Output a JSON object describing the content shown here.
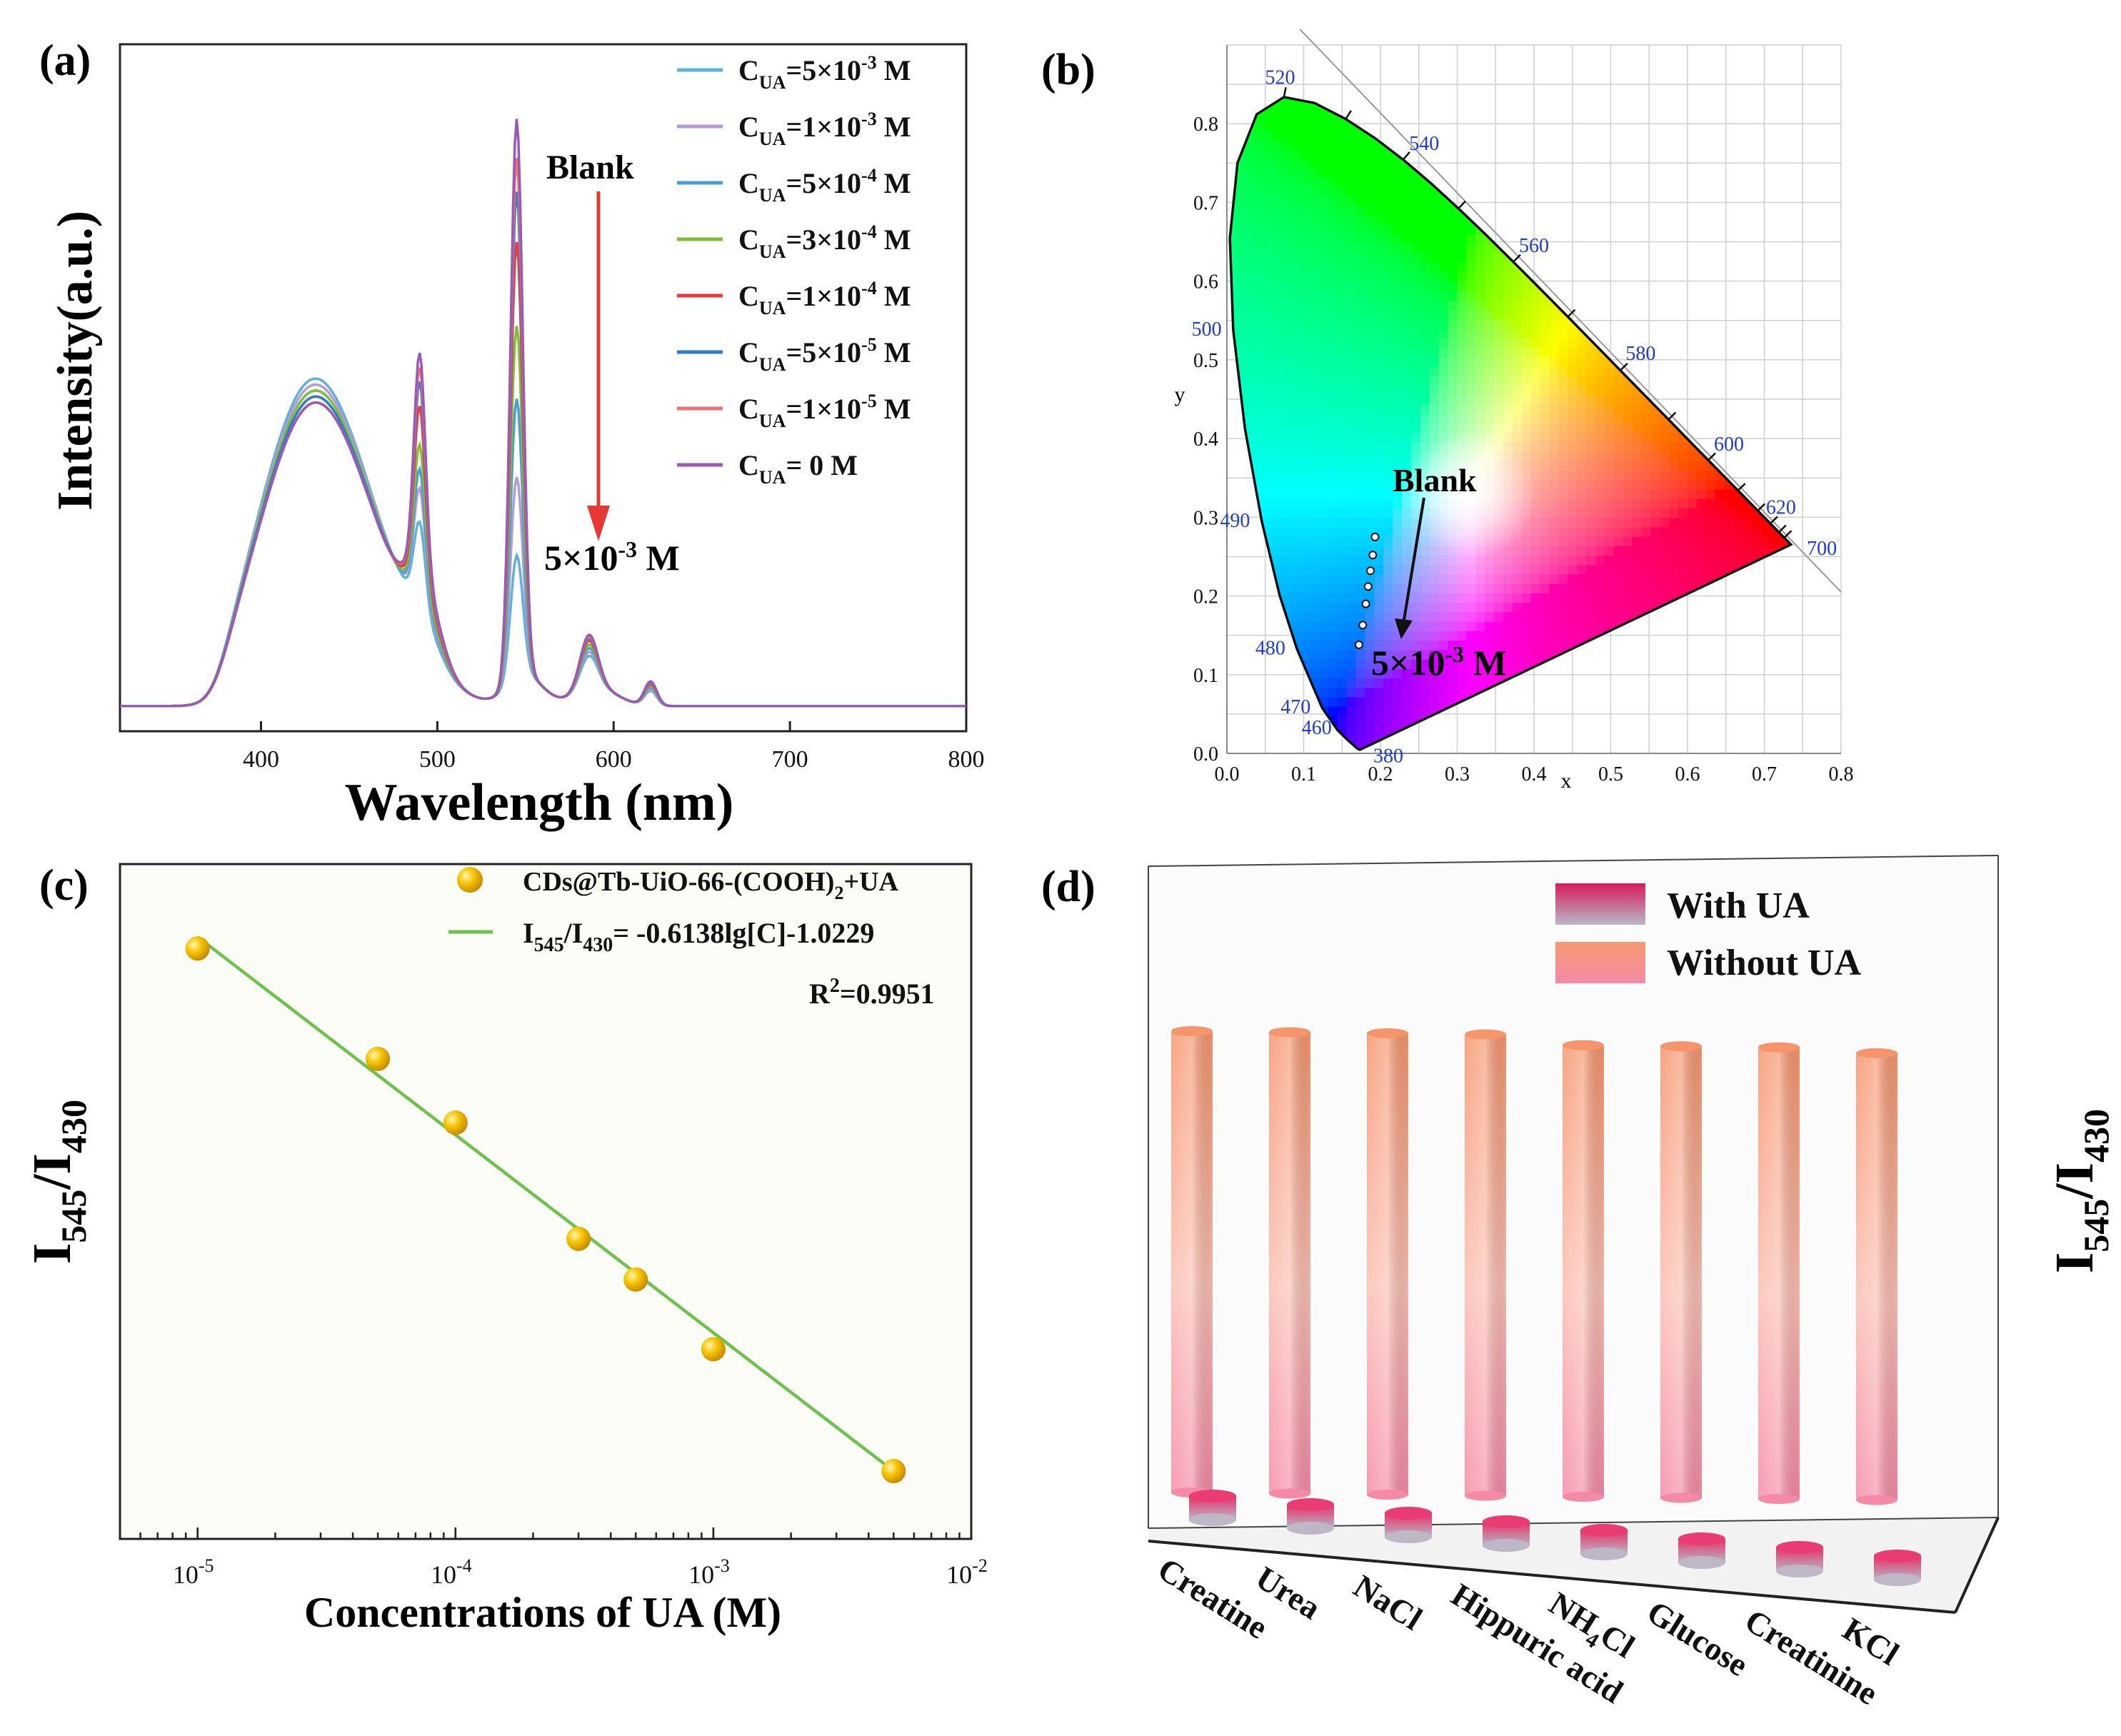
{
  "panels": {
    "a": {
      "label": "(a)",
      "chart_data": {
        "type": "line",
        "xlabel": "Wavelength (nm)",
        "ylabel": "Intensity(a.u.)",
        "xlim": [
          320,
          800
        ],
        "ylim": [
          0,
          1.0
        ],
        "xticks": [
          "400",
          "500",
          "600",
          "700",
          "800"
        ],
        "xtick_values": [
          400,
          500,
          600,
          700,
          800
        ],
        "annotation_top": "Blank",
        "annotation_bottom_base": "5×10",
        "annotation_bottom_exp": "-3",
        "annotation_bottom_unit": " M",
        "series": [
          {
            "name": "CUA=5×10-3 M",
            "sub": "UA",
            "mant": "5×10",
            "exp": "-3",
            "unit": " M",
            "color": "#5fb0dc",
            "peak545": 0.22,
            "peak490": 0.22,
            "peak430": 0.52
          },
          {
            "name": "CUA=1×10-3 M",
            "sub": "UA",
            "mant": "1×10",
            "exp": "-3",
            "unit": " M",
            "color": "#b59ad8",
            "peak545": 0.36,
            "peak490": 0.29,
            "peak430": 0.51
          },
          {
            "name": "CUA=5×10-4 M",
            "sub": "UA",
            "mant": "5×10",
            "exp": "-4",
            "unit": " M",
            "color": "#4a9ed8",
            "peak545": 0.5,
            "peak490": 0.33,
            "peak430": 0.5
          },
          {
            "name": "CUA=3×10-4 M",
            "sub": "UA",
            "mant": "3×10",
            "exp": "-4",
            "unit": " M",
            "color": "#7cc03a",
            "peak545": 0.63,
            "peak490": 0.38,
            "peak430": 0.5
          },
          {
            "name": "CUA=1×10-4 M",
            "sub": "UA",
            "mant": "1×10",
            "exp": "-4",
            "unit": " M",
            "color": "#ee3b3b",
            "peak545": 0.78,
            "peak490": 0.46,
            "peak430": 0.49
          },
          {
            "name": "CUA=5×10-5 M",
            "sub": "UA",
            "mant": "5×10",
            "exp": "-5",
            "unit": " M",
            "color": "#2f7fc8",
            "peak545": 0.87,
            "peak490": 0.51,
            "peak430": 0.49
          },
          {
            "name": "CUA=1×10-5 M",
            "sub": "UA",
            "mant": "1×10",
            "exp": "-5",
            "unit": " M",
            "color": "#f07070",
            "peak545": 0.93,
            "peak490": 0.54,
            "peak430": 0.48
          },
          {
            "name": "CUA= 0 M",
            "sub": "UA",
            "mant": "= 0",
            "exp": "",
            "unit": " M",
            "color": "#9b59b6",
            "peak545": 1.0,
            "peak490": 0.57,
            "peak430": 0.48
          }
        ]
      }
    },
    "b": {
      "label": "(b)",
      "chart_data": {
        "type": "scatter",
        "xlabel": "x",
        "ylabel": "y",
        "xlim": [
          0,
          0.8
        ],
        "ylim": [
          0,
          0.9
        ],
        "xticks": [
          "0.0",
          "0.1",
          "0.2",
          "0.3",
          "0.4",
          "0.5",
          "0.6",
          "0.7",
          "0.8"
        ],
        "xtick_values": [
          0,
          0.1,
          0.2,
          0.3,
          0.4,
          0.5,
          0.6,
          0.7,
          0.8
        ],
        "yticks": [
          "0.0",
          "0.1",
          "0.2",
          "0.3",
          "0.4",
          "0.5",
          "0.6",
          "0.7",
          "0.8"
        ],
        "ytick_values": [
          0,
          0.1,
          0.2,
          0.3,
          0.4,
          0.5,
          0.6,
          0.7,
          0.8
        ],
        "wavelength_labels": [
          {
            "text": "520",
            "x": 0.074,
            "y": 0.834
          },
          {
            "text": "540",
            "x": 0.23,
            "y": 0.754
          },
          {
            "text": "560",
            "x": 0.373,
            "y": 0.624
          },
          {
            "text": "580",
            "x": 0.512,
            "y": 0.487
          },
          {
            "text": "600",
            "x": 0.627,
            "y": 0.372
          },
          {
            "text": "620",
            "x": 0.691,
            "y": 0.308
          },
          {
            "text": "700",
            "x": 0.735,
            "y": 0.265
          },
          {
            "text": "500",
            "x": 0.008,
            "y": 0.538
          },
          {
            "text": "490",
            "x": 0.045,
            "y": 0.295
          },
          {
            "text": "480",
            "x": 0.091,
            "y": 0.133
          },
          {
            "text": "470",
            "x": 0.124,
            "y": 0.058
          },
          {
            "text": "460",
            "x": 0.144,
            "y": 0.03
          },
          {
            "text": "380",
            "x": 0.174,
            "y": 0.005
          }
        ],
        "points": [
          {
            "x": 0.193,
            "y": 0.275
          },
          {
            "x": 0.19,
            "y": 0.252
          },
          {
            "x": 0.187,
            "y": 0.232
          },
          {
            "x": 0.184,
            "y": 0.212
          },
          {
            "x": 0.181,
            "y": 0.19
          },
          {
            "x": 0.177,
            "y": 0.163
          },
          {
            "x": 0.172,
            "y": 0.138
          }
        ],
        "annotation_top": "Blank",
        "annotation_bottom_base": "5×10",
        "annotation_bottom_exp": "-3",
        "annotation_bottom_unit": " M"
      }
    },
    "c": {
      "label": "(c)",
      "chart_data": {
        "type": "scatter",
        "xlabel": "Concentrations of UA (M)",
        "ylabel_main": "I",
        "ylabel_sub1": "545",
        "ylabel_sep": "/I",
        "ylabel_sub2": "430",
        "xscale": "log",
        "xlim": [
          5e-06,
          0.01
        ],
        "ylim": [
          0.0,
          1.0
        ],
        "xticks": [
          {
            "base": "10",
            "exp": "-5",
            "value": 1e-05
          },
          {
            "base": "10",
            "exp": "-4",
            "value": 0.0001
          },
          {
            "base": "10",
            "exp": "-3",
            "value": 0.001
          },
          {
            "base": "10",
            "exp": "-2",
            "value": 0.01
          }
        ],
        "points": [
          {
            "x": 1e-05,
            "y": 0.86
          },
          {
            "x": 5e-05,
            "y": 0.67
          },
          {
            "x": 0.0001,
            "y": 0.56
          },
          {
            "x": 0.0003,
            "y": 0.36
          },
          {
            "x": 0.0005,
            "y": 0.29
          },
          {
            "x": 0.001,
            "y": 0.17
          },
          {
            "x": 0.005,
            "y": -0.04
          }
        ],
        "fit": {
          "x1": 1e-05,
          "y1": 0.88,
          "x2": 0.005,
          "y2": -0.04
        },
        "legend_points": "CDs@Tb-UiO-66-(COOH)",
        "legend_points_sub": "2",
        "legend_points_tail": "+UA",
        "legend_fit_main": "I",
        "legend_fit_sub1": "545",
        "legend_fit_sep": "/I",
        "legend_fit_sub2": "430",
        "legend_fit_tail": "= -0.6138lg[C]-1.0229",
        "r2_prefix": "R",
        "r2_exp": "2",
        "r2_tail": "=0.9951",
        "point_color": "#f5b800",
        "line_color": "#6cc24a"
      }
    },
    "d": {
      "label": "(d)",
      "chart_data": {
        "type": "bar",
        "ylabel_main": "I",
        "ylabel_sub1": "545",
        "ylabel_sep": "/I",
        "ylabel_sub2": "430",
        "categories": [
          "Creatine",
          "Urea",
          "NaCl",
          "Hippuric acid",
          "NH4Cl",
          "Glucose",
          "Creatinine",
          "KCl"
        ],
        "category_labels": [
          {
            "main": "Creatine",
            "sub": "",
            "tail": ""
          },
          {
            "main": "Urea",
            "sub": "",
            "tail": ""
          },
          {
            "main": "NaCl",
            "sub": "",
            "tail": ""
          },
          {
            "main": "Hippuric acid",
            "sub": "",
            "tail": ""
          },
          {
            "main": "NH",
            "sub": "4",
            "tail": "Cl"
          },
          {
            "main": "Glucose",
            "sub": "",
            "tail": ""
          },
          {
            "main": "Creatinine",
            "sub": "",
            "tail": ""
          },
          {
            "main": "KCl",
            "sub": "",
            "tail": ""
          }
        ],
        "series": [
          {
            "name": "With UA",
            "values": [
              0.06,
              0.06,
              0.06,
              0.06,
              0.06,
              0.06,
              0.06,
              0.06
            ]
          },
          {
            "name": "Without UA",
            "values": [
              0.95,
              0.95,
              0.95,
              0.95,
              0.93,
              0.93,
              0.93,
              0.92
            ]
          }
        ],
        "ylim": [
          0,
          1.0
        ]
      }
    }
  }
}
